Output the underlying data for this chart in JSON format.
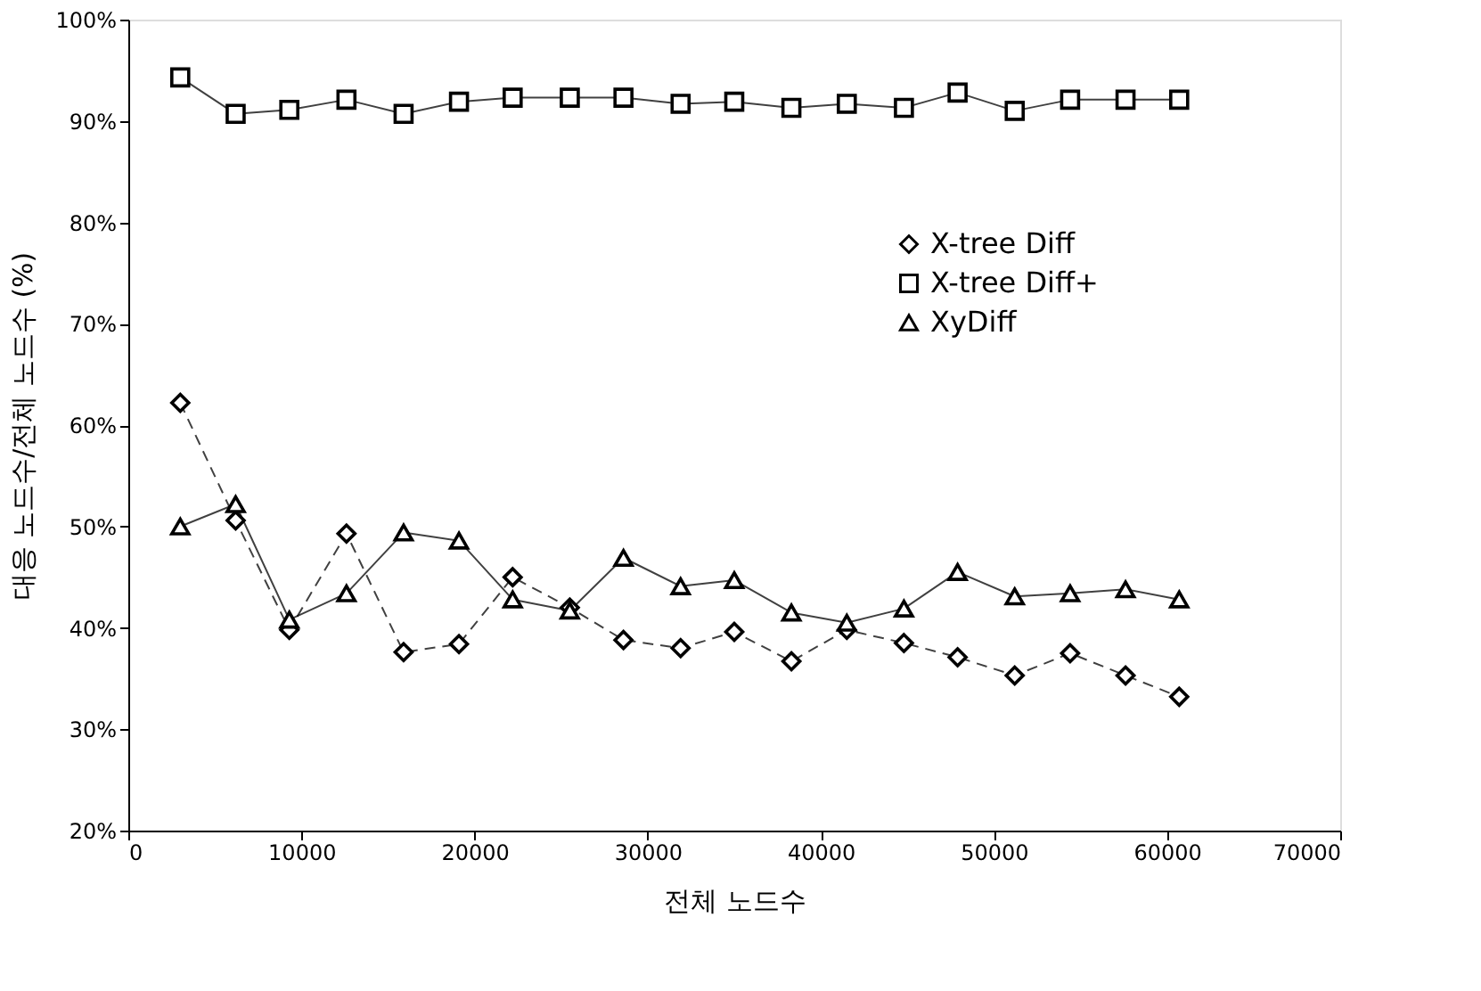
{
  "chart_data": {
    "type": "line",
    "xlabel": "전체 노드수",
    "ylabel": "대응 노드수/전체 노드수 (%)",
    "x": [
      3000,
      6200,
      9300,
      12600,
      15900,
      19100,
      22200,
      25500,
      28600,
      31900,
      35000,
      38300,
      41500,
      44800,
      47900,
      51200,
      54400,
      57600,
      60700
    ],
    "series": [
      {
        "name": "X-tree Diff",
        "color": "#000000",
        "marker": "diamond",
        "line_style": "dashed",
        "values": [
          62.2,
          50.6,
          39.8,
          49.3,
          37.6,
          38.4,
          45.0,
          42.0,
          38.8,
          38.0,
          39.6,
          36.7,
          39.8,
          38.5,
          37.1,
          35.3,
          37.5,
          35.3,
          33.2
        ]
      },
      {
        "name": "X-tree Diff+",
        "color": "#000000",
        "marker": "square",
        "line_style": "solid",
        "values": [
          94.3,
          90.7,
          91.1,
          92.1,
          90.7,
          91.9,
          92.3,
          92.3,
          92.3,
          91.7,
          91.9,
          91.3,
          91.7,
          91.3,
          92.8,
          91.0,
          92.1,
          92.1,
          92.1
        ]
      },
      {
        "name": "XyDiff",
        "color": "#000000",
        "marker": "triangle",
        "line_style": "solid",
        "values": [
          50.0,
          52.2,
          40.8,
          43.4,
          49.4,
          48.6,
          42.8,
          41.7,
          46.9,
          44.1,
          44.7,
          41.5,
          40.5,
          41.9,
          45.5,
          43.1,
          43.4,
          43.8,
          42.8
        ]
      }
    ],
    "xlim": [
      0,
      70000
    ],
    "xticks": [
      0,
      10000,
      20000,
      30000,
      40000,
      50000,
      60000,
      70000
    ],
    "ylim": [
      20,
      100
    ],
    "yticks": [
      {
        "value": 20,
        "label": "20%"
      },
      {
        "value": 30,
        "label": "30%"
      },
      {
        "value": 40,
        "label": "40%"
      },
      {
        "value": 50,
        "label": "50%"
      },
      {
        "value": 60,
        "label": "60%"
      },
      {
        "value": 70,
        "label": "70%"
      },
      {
        "value": 80,
        "label": "80%"
      },
      {
        "value": 90,
        "label": "90%"
      },
      {
        "value": 100,
        "label": "100%"
      }
    ],
    "grid": false,
    "legend": "right"
  }
}
